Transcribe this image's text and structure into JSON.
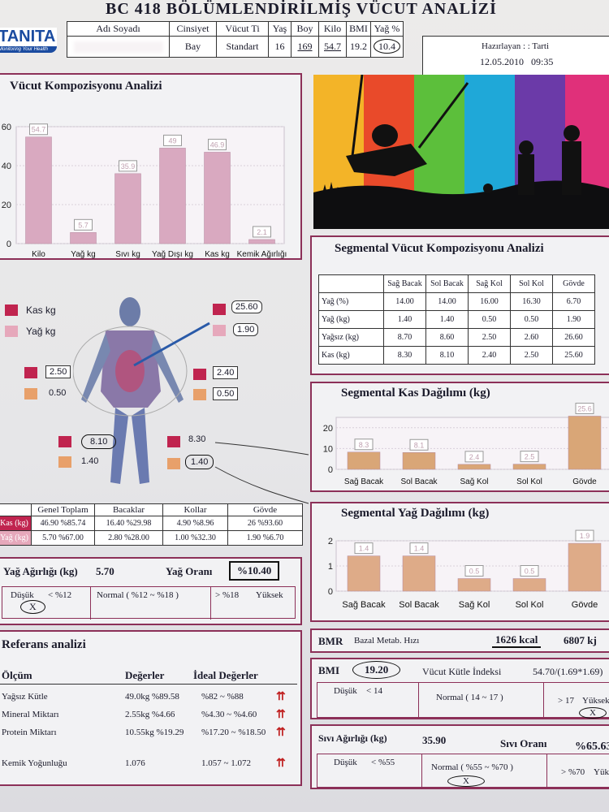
{
  "header": {
    "logo": "TANITA",
    "logo_tagline": "Monitoring Your Health",
    "title": "BC 418 BÖLÜMLENDİRİLMİŞ VÜCUT ANALİZİ",
    "columns": [
      "Adı Soyadı",
      "Cinsiyet",
      "Vücut Ti",
      "Yaş",
      "Boy",
      "Kilo",
      "BMI",
      "Yağ %"
    ],
    "values": [
      "",
      "Bay",
      "Standart",
      "16",
      "169",
      "54.7",
      "19.2",
      "10.4"
    ],
    "prepared_label": "Hazırlayan : : Tarti",
    "date_time": "12.05.2010   09:35"
  },
  "body_comp": {
    "title": "Vücut Kompozisyonu Analizi"
  },
  "chart_data": [
    {
      "type": "bar",
      "title": "",
      "categories": [
        "Kilo",
        "Yağ kg",
        "Sıvı kg",
        "Yağ Dışı kg",
        "Kas kg",
        "Kemik Ağırlığı"
      ],
      "values": [
        54.7,
        5.7,
        35.9,
        49,
        46.9,
        2.1
      ],
      "value_labels": [
        "54.7",
        "5.7",
        "35.9",
        "49",
        "46.9",
        "2.1"
      ],
      "yticks": [
        "60",
        "40",
        "20",
        "0"
      ],
      "ylim": [
        0,
        60
      ],
      "color": "#d9a9c0"
    },
    {
      "type": "bar",
      "title": "Segmental Kas Dağılımı (kg)",
      "categories": [
        "Sağ Bacak",
        "Sol Bacak",
        "Sağ Kol",
        "Sol Kol",
        "Gövde"
      ],
      "values": [
        8.3,
        8.1,
        2.4,
        2.5,
        25.6
      ],
      "value_labels": [
        "8.3",
        "8.1",
        "2.4",
        "2.5",
        "25.6"
      ],
      "yticks": [
        "20",
        "10",
        "0"
      ],
      "ylim": [
        0,
        25
      ],
      "color": "#d9a677"
    },
    {
      "type": "bar",
      "title": "Segmental Yağ Dağılımı (kg)",
      "categories": [
        "Sağ Bacak",
        "Sol Bacak",
        "Sağ Kol",
        "Sol Kol",
        "Gövde"
      ],
      "values": [
        1.4,
        1.4,
        0.5,
        0.5,
        1.9
      ],
      "value_labels": [
        "1.4",
        "1.4",
        "0.5",
        "0.5",
        "1.9"
      ],
      "yticks": [
        "2",
        "1",
        "0"
      ],
      "ylim": [
        0,
        2
      ],
      "color": "#deab88"
    }
  ],
  "figure": {
    "legend_kas": "Kas kg",
    "legend_yag": "Yağ kg",
    "trunk_kas": "25.60",
    "trunk_yag": "1.90",
    "right_arm_kas": "2.50",
    "right_arm_yag": "0.50",
    "left_arm_kas": "2.40",
    "left_arm_yag": "0.50",
    "right_leg_kas": "8.10",
    "right_leg_yag": "1.40",
    "left_leg_kas": "8.30",
    "left_leg_yag": "1.40"
  },
  "segmental": {
    "title": "Segmental Vücut Kompozisyonu Analizi",
    "headers": [
      "",
      "Sağ Bacak",
      "Sol Bacak",
      "Sağ Kol",
      "Sol Kol",
      "Gövde"
    ],
    "rows": [
      [
        "Yağ (%)",
        "14.00",
        "14.00",
        "16.00",
        "16.30",
        "6.70"
      ],
      [
        "Yağ (kg)",
        "1.40",
        "1.40",
        "0.50",
        "0.50",
        "1.90"
      ],
      [
        "Yağsız (kg)",
        "8.70",
        "8.60",
        "2.50",
        "2.60",
        "26.60"
      ],
      [
        "Kas (kg)",
        "8.30",
        "8.10",
        "2.40",
        "2.50",
        "25.60"
      ]
    ]
  },
  "summary": {
    "headers": [
      "",
      "Genel Toplam",
      "Bacaklar",
      "Kollar",
      "Gövde"
    ],
    "rows": [
      [
        "Kas (kg)",
        "46.90 %85.74",
        "16.40 %29.98",
        "4.90 %8.96",
        "26 %93.60"
      ],
      [
        "Yağ (kg)",
        "5.70 %67.00",
        "2.80 %28.00",
        "1.00 %32.30",
        "1.90 %6.70"
      ]
    ]
  },
  "fat": {
    "label": "Yağ Ağırlığı (kg)",
    "value": "5.70",
    "ratio_label": "Yağ Oranı",
    "ratio_value": "%10.40",
    "low": "Düşük",
    "low_range": "< %12",
    "normal": "Normal ( %12 ~ %18 )",
    "high_range": "> %18",
    "high": "Yüksek",
    "mark": "X"
  },
  "reference": {
    "title": "Referans analizi",
    "headers": [
      "Ölçüm",
      "Değerler",
      "İdeal Değerler"
    ],
    "rows": [
      [
        "Yağsız Kütle",
        "49.0kg %89.58",
        "%82 ~ %88"
      ],
      [
        "Mineral Miktarı",
        "2.55kg %4.66",
        "%4.30 ~ %4.60"
      ],
      [
        "Protein Miktarı",
        "10.55kg %19.29",
        "%17.20 ~ %18.50"
      ],
      [
        "Kemik Yoğunluğu",
        "1.076",
        "1.057 ~ 1.072"
      ]
    ],
    "arrow": "⇈"
  },
  "bmr": {
    "label": "BMR",
    "desc": "Bazal Metab. Hızı",
    "kcal": "1626 kcal",
    "kj": "6807 kj"
  },
  "bmi": {
    "label": "BMI",
    "value": "19.20",
    "desc": "Vücut Kütle İndeksi",
    "formula": "54.70/(1.69*1.69)",
    "low": "Düşük",
    "low_range": "< 14",
    "normal": "Normal ( 14 ~ 17 )",
    "high_range": "> 17",
    "high": "Yüksek",
    "mark": "X"
  },
  "water": {
    "label": "Sıvı Ağırlığı (kg)",
    "value": "35.90",
    "ratio_label": "Sıvı Oranı",
    "ratio_value": "%65.63",
    "low": "Düşük",
    "low_range": "< %55",
    "normal": "Normal ( %55 ~ %70 )",
    "high_range": "> %70",
    "high": "Yüksek",
    "mark": "X"
  }
}
